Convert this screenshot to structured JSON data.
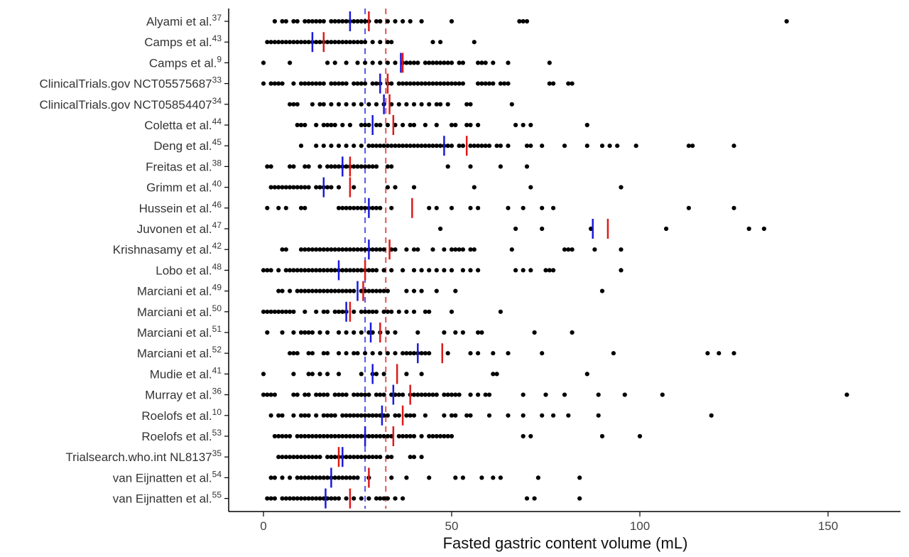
{
  "chart_data": {
    "type": "scatter",
    "title": "",
    "xlabel": "Fasted gastric content volume (mL)",
    "ylabel": "",
    "xlim": [
      -10,
      170
    ],
    "xticks": [
      0,
      50,
      100,
      150
    ],
    "grid": false,
    "legend": "none",
    "colors": {
      "points": "#000000",
      "median": "#1a1adc",
      "mean": "#dc1a1a"
    },
    "overall": {
      "median": 27,
      "mean": 32.5
    },
    "studies": [
      {
        "name": "Alyami et al.",
        "ref": "37",
        "median": 23,
        "mean": 28,
        "values": [
          3,
          5,
          6,
          8,
          9,
          11,
          12,
          13,
          14,
          15,
          16,
          18,
          19,
          20,
          21,
          22,
          23,
          24,
          25,
          26,
          27,
          28,
          30,
          31,
          33,
          35,
          37,
          39,
          42,
          50,
          68,
          69,
          70,
          139
        ]
      },
      {
        "name": "Camps et al.",
        "ref": "43",
        "median": 13,
        "mean": 16,
        "values": [
          1,
          2,
          3,
          4,
          5,
          6,
          7,
          8,
          9,
          10,
          11,
          12,
          13,
          14,
          15,
          16,
          17,
          18,
          19,
          20,
          21,
          22,
          23,
          24,
          25,
          26,
          27,
          29,
          31,
          33,
          34,
          45,
          47,
          56
        ]
      },
      {
        "name": "Camps et al.",
        "ref": "9",
        "median": 36.5,
        "mean": 37,
        "values": [
          0,
          7,
          17,
          19,
          22,
          25,
          27,
          29,
          31,
          33,
          35,
          37,
          38,
          39,
          40,
          41,
          43,
          44,
          45,
          46,
          47,
          48,
          49,
          50,
          52,
          53,
          57,
          58,
          59,
          61,
          65,
          76
        ]
      },
      {
        "name": "ClinicalTrials.gov NCT05575687",
        "ref": "33",
        "median": 31,
        "mean": 33,
        "values": [
          0,
          2,
          3,
          4,
          5,
          8,
          10,
          11,
          12,
          13,
          14,
          15,
          16,
          18,
          19,
          20,
          21,
          22,
          24,
          25,
          26,
          27,
          29,
          30,
          31,
          33,
          34,
          36,
          37,
          38,
          39,
          40,
          41,
          42,
          43,
          44,
          45,
          46,
          47,
          48,
          49,
          50,
          51,
          52,
          53,
          57,
          58,
          59,
          60,
          61,
          63,
          64,
          65,
          76,
          77,
          81,
          82
        ]
      },
      {
        "name": "ClinicalTrials.gov NCT05854407",
        "ref": "34",
        "median": 32,
        "mean": 33.5,
        "values": [
          7,
          8,
          9,
          13,
          15,
          16,
          18,
          20,
          22,
          24,
          26,
          28,
          30,
          32,
          34,
          36,
          38,
          40,
          42,
          44,
          46,
          47,
          49,
          54,
          55,
          66
        ]
      },
      {
        "name": "Coletta et al.",
        "ref": "44",
        "median": 29,
        "mean": 34.5,
        "values": [
          9,
          10,
          11,
          14,
          16,
          17,
          18,
          19,
          21,
          23,
          26,
          27,
          28,
          30,
          31,
          33,
          35,
          37,
          39,
          40,
          43,
          46,
          50,
          51,
          54,
          55,
          57,
          67,
          69,
          71,
          86
        ]
      },
      {
        "name": "Deng et al.",
        "ref": "45",
        "median": 48,
        "mean": 54,
        "values": [
          10,
          14,
          16,
          18,
          20,
          22,
          24,
          26,
          28,
          29,
          30,
          31,
          32,
          33,
          34,
          35,
          36,
          37,
          38,
          39,
          40,
          41,
          42,
          43,
          44,
          45,
          46,
          47,
          48,
          49,
          50,
          52,
          53,
          55,
          56,
          57,
          58,
          59,
          60,
          62,
          63,
          65,
          70,
          71,
          74,
          80,
          86,
          90,
          92,
          94,
          99,
          113,
          114,
          125
        ]
      },
      {
        "name": "Freitas et al.",
        "ref": "38",
        "median": 21,
        "mean": 23,
        "values": [
          1,
          2,
          7,
          8,
          11,
          12,
          15,
          17,
          18,
          19,
          20,
          21,
          22,
          23,
          24,
          25,
          26,
          27,
          28,
          29,
          30,
          33,
          34,
          49,
          55,
          63,
          70
        ]
      },
      {
        "name": "Grimm et al.",
        "ref": "40",
        "median": 16,
        "mean": 23,
        "values": [
          2,
          3,
          4,
          5,
          6,
          7,
          8,
          9,
          10,
          11,
          12,
          14,
          15,
          16,
          17,
          18,
          20,
          24,
          33,
          35,
          40,
          56,
          71,
          95
        ]
      },
      {
        "name": "Hussein et al.",
        "ref": "46",
        "median": 28,
        "mean": 39.5,
        "values": [
          1,
          4,
          6,
          10,
          11,
          20,
          21,
          22,
          23,
          24,
          25,
          26,
          27,
          28,
          29,
          30,
          31,
          34,
          44,
          46,
          50,
          55,
          57,
          65,
          69,
          74,
          77,
          113,
          125
        ]
      },
      {
        "name": "Juvonen et al.",
        "ref": "47",
        "median": 87.5,
        "mean": 91.5,
        "values": [
          47,
          67,
          74,
          87,
          107,
          129,
          133
        ]
      },
      {
        "name": "Krishnasamy et al.",
        "ref": "42",
        "median": 28,
        "mean": 33.5,
        "values": [
          5,
          6,
          10,
          11,
          12,
          13,
          14,
          15,
          16,
          17,
          18,
          19,
          20,
          21,
          22,
          23,
          24,
          25,
          26,
          27,
          28,
          29,
          30,
          31,
          32,
          34,
          35,
          38,
          40,
          41,
          45,
          48,
          50,
          51,
          52,
          53,
          55,
          56,
          66,
          80,
          81,
          82,
          88,
          95
        ]
      },
      {
        "name": "Lobo et al.",
        "ref": "48",
        "median": 20,
        "mean": 27,
        "values": [
          0,
          1,
          2,
          4,
          6,
          7,
          8,
          9,
          10,
          11,
          12,
          13,
          14,
          15,
          16,
          17,
          18,
          19,
          20,
          21,
          22,
          23,
          24,
          25,
          26,
          27,
          28,
          29,
          30,
          32,
          34,
          37,
          40,
          42,
          44,
          46,
          48,
          50,
          53,
          55,
          57,
          67,
          69,
          71,
          75,
          76,
          77,
          95
        ]
      },
      {
        "name": "Marciani et al.",
        "ref": "49",
        "median": 25,
        "mean": 26.5,
        "values": [
          4,
          5,
          7,
          9,
          10,
          11,
          12,
          13,
          14,
          15,
          16,
          17,
          18,
          19,
          20,
          21,
          22,
          23,
          24,
          26,
          27,
          28,
          29,
          30,
          31,
          32,
          33,
          38,
          40,
          42,
          46,
          51,
          90
        ]
      },
      {
        "name": "Marciani et al.",
        "ref": "50",
        "median": 22,
        "mean": 23,
        "values": [
          0,
          1,
          2,
          3,
          4,
          5,
          6,
          7,
          8,
          11,
          14,
          16,
          17,
          19,
          20,
          21,
          22,
          24,
          26,
          27,
          28,
          29,
          30,
          32,
          33,
          34,
          36,
          38,
          40,
          43,
          44,
          50,
          63
        ]
      },
      {
        "name": "Marciani et al.",
        "ref": "51",
        "median": 28.5,
        "mean": 31,
        "values": [
          1,
          5,
          8,
          10,
          11,
          12,
          13,
          15,
          17,
          20,
          22,
          24,
          26,
          28,
          29,
          31,
          33,
          35,
          41,
          48,
          51,
          53,
          57,
          58,
          72,
          82
        ]
      },
      {
        "name": "Marciani et al.",
        "ref": "52",
        "median": 41,
        "mean": 47.5,
        "values": [
          7,
          8,
          9,
          12,
          13,
          16,
          17,
          20,
          22,
          24,
          25,
          27,
          29,
          31,
          33,
          35,
          37,
          38,
          39,
          40,
          41,
          42,
          43,
          44,
          49,
          55,
          57,
          61,
          65,
          74,
          93,
          118,
          121,
          125
        ]
      },
      {
        "name": "Mudie et al.",
        "ref": "41",
        "median": 29,
        "mean": 35.5,
        "values": [
          0,
          8,
          12,
          13,
          15,
          17,
          20,
          26,
          29,
          30,
          32,
          38,
          42,
          61,
          62,
          86
        ]
      },
      {
        "name": "Murray et al.",
        "ref": "36",
        "median": 34.5,
        "mean": 39,
        "values": [
          0,
          1,
          2,
          3,
          8,
          9,
          11,
          12,
          14,
          15,
          16,
          17,
          19,
          20,
          21,
          22,
          24,
          25,
          26,
          27,
          28,
          30,
          31,
          32,
          34,
          35,
          36,
          37,
          39,
          40,
          41,
          42,
          43,
          44,
          45,
          46,
          48,
          49,
          50,
          51,
          52,
          55,
          57,
          59,
          60,
          69,
          75,
          80,
          89,
          96,
          106,
          155
        ]
      },
      {
        "name": "Roelofs et al.",
        "ref": "10",
        "median": 31.5,
        "mean": 37,
        "values": [
          2,
          4,
          5,
          8,
          10,
          11,
          12,
          14,
          16,
          17,
          18,
          19,
          21,
          22,
          23,
          24,
          25,
          26,
          27,
          28,
          29,
          30,
          31,
          32,
          33,
          35,
          36,
          38,
          39,
          40,
          43,
          48,
          50,
          51,
          54,
          55,
          60,
          65,
          69,
          74,
          77,
          81,
          89,
          119
        ]
      },
      {
        "name": "Roelofs et al.",
        "ref": "53",
        "median": 27,
        "mean": 34.5,
        "values": [
          3,
          4,
          5,
          6,
          7,
          9,
          10,
          11,
          12,
          13,
          14,
          15,
          16,
          17,
          18,
          19,
          20,
          21,
          22,
          23,
          24,
          25,
          26,
          27,
          28,
          29,
          30,
          31,
          32,
          33,
          34,
          36,
          37,
          38,
          39,
          40,
          42,
          44,
          45,
          46,
          47,
          48,
          49,
          50,
          69,
          71,
          90,
          100
        ]
      },
      {
        "name": "Trialsearch.who.int NL8137",
        "ref": "35",
        "median": 21,
        "mean": 20,
        "values": [
          4,
          5,
          6,
          7,
          8,
          9,
          10,
          11,
          12,
          13,
          14,
          15,
          17,
          18,
          19,
          20,
          21,
          22,
          23,
          24,
          25,
          26,
          27,
          28,
          29,
          30,
          31,
          33,
          34,
          39,
          40,
          42
        ]
      },
      {
        "name": "van Eijnatten et al.",
        "ref": "54",
        "median": 18,
        "mean": 28,
        "values": [
          2,
          3,
          5,
          7,
          9,
          10,
          11,
          12,
          13,
          14,
          15,
          16,
          17,
          18,
          19,
          20,
          21,
          22,
          23,
          24,
          25,
          28,
          34,
          38,
          44,
          51,
          53,
          58,
          61,
          63,
          73,
          84
        ]
      },
      {
        "name": "van Eijnatten et al.",
        "ref": "55",
        "median": 16.5,
        "mean": 23,
        "values": [
          1,
          2,
          3,
          5,
          6,
          7,
          8,
          9,
          10,
          11,
          12,
          13,
          14,
          15,
          16,
          17,
          18,
          19,
          20,
          22,
          24,
          26,
          28,
          30,
          31,
          32,
          33,
          35,
          37,
          70,
          72,
          84
        ]
      }
    ]
  }
}
